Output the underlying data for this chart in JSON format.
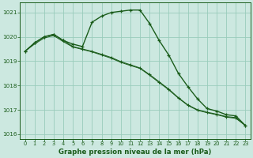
{
  "title": "Graphe pression niveau de la mer (hPa)",
  "bg_color": "#cce8e0",
  "grid_color": "#99ccbb",
  "line_color": "#1a5c1a",
  "ylim": [
    1015.8,
    1021.4
  ],
  "xlim": [
    -0.5,
    23.5
  ],
  "yticks": [
    1016,
    1017,
    1018,
    1019,
    1020,
    1021
  ],
  "xticks": [
    0,
    1,
    2,
    3,
    4,
    5,
    6,
    7,
    8,
    9,
    10,
    11,
    12,
    13,
    14,
    15,
    16,
    17,
    18,
    19,
    20,
    21,
    22,
    23
  ],
  "series": [
    [
      1019.4,
      1019.75,
      1020.0,
      1020.1,
      1019.85,
      1019.7,
      1019.6,
      1020.6,
      1020.85,
      1021.0,
      1021.05,
      1021.1,
      1021.1,
      1020.55,
      1019.85,
      1019.25,
      1018.5,
      1017.95,
      1017.45,
      1017.05,
      1016.95,
      1016.8,
      1016.75,
      1016.35
    ],
    [
      1019.4,
      1019.75,
      1020.0,
      1020.1,
      1019.85,
      1019.6,
      1019.5,
      1019.4,
      1019.28,
      1019.15,
      1018.98,
      1018.85,
      1018.72,
      1018.45,
      1018.15,
      1017.85,
      1017.5,
      1017.2,
      1017.0,
      1016.9,
      1016.82,
      1016.72,
      1016.68,
      1016.35
    ],
    [
      1019.4,
      1019.7,
      1019.95,
      1020.05,
      1019.8,
      1019.58,
      1019.48,
      1019.38,
      1019.25,
      1019.12,
      1018.95,
      1018.82,
      1018.7,
      1018.42,
      1018.12,
      1017.82,
      1017.48,
      1017.18,
      1016.98,
      1016.88,
      1016.8,
      1016.7,
      1016.65,
      1016.35
    ]
  ],
  "marker_hours_s1": [
    0,
    1,
    2,
    3,
    4,
    5,
    6,
    7,
    8,
    9,
    10,
    11,
    12,
    13,
    14,
    15,
    16,
    17,
    18,
    19,
    20,
    21,
    22,
    23
  ],
  "marker_hours_s2": [
    0,
    1,
    2,
    3,
    4,
    5,
    6,
    7,
    8,
    9,
    10,
    11,
    12,
    13,
    14,
    15,
    16,
    17,
    18,
    19,
    20,
    21,
    22,
    23
  ]
}
